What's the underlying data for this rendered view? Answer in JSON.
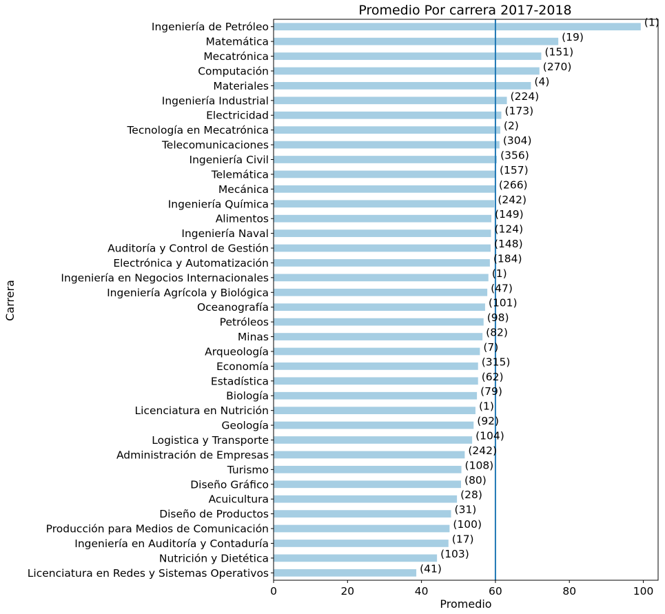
{
  "chart_data": {
    "type": "bar",
    "orientation": "horizontal",
    "title": "Promedio Por carrera 2017-2018",
    "xlabel": "Promedio",
    "ylabel": "Carrera",
    "xlim": [
      0,
      104
    ],
    "xticks": [
      0,
      20,
      40,
      60,
      80,
      100
    ],
    "grid": false,
    "reference_line": {
      "x": 60,
      "color": "#1f77b4"
    },
    "bar_color": "#a6cee3",
    "categories": [
      "Ingeniería de Petróleo",
      "Matemática",
      "Mecatrónica",
      "Computación",
      "Materiales",
      "Ingeniería Industrial",
      "Electricidad",
      "Tecnología en Mecatrónica",
      "Telecomunicaciones",
      "Ingeniería Civil",
      "Telemática",
      "Mecánica",
      "Ingeniería Química",
      "Alimentos",
      "Ingeniería Naval",
      "Auditoría y Control de Gestión",
      "Electrónica y Automatización",
      "Ingeniería en Negocios Internacionales ",
      "Ingeniería Agrícola y Biológica",
      "Oceanografía",
      "Petróleos",
      "Minas",
      "Arqueología",
      "Economía",
      "Estadística",
      "Biología",
      "Licenciatura en Nutrición",
      "Geología",
      "Logistica y Transporte",
      "Administración de Empresas",
      "Turismo",
      "Diseño Gráfico",
      "Acuicultura",
      "Diseño de Productos",
      "Producción para Medios de Comunicación",
      "Ingeniería en Auditoría y Contaduría",
      "Nutrición y Dietética",
      "Licenciatura en Redes y Sistemas Operativos"
    ],
    "values": [
      99.3,
      77.0,
      72.4,
      71.9,
      69.6,
      63.1,
      61.6,
      61.3,
      61.1,
      60.4,
      60.2,
      60.0,
      59.7,
      58.9,
      58.8,
      58.7,
      58.5,
      58.1,
      57.8,
      57.2,
      56.8,
      56.5,
      55.8,
      55.3,
      55.3,
      55.0,
      54.6,
      54.1,
      53.7,
      51.7,
      50.8,
      50.7,
      49.6,
      48.0,
      47.6,
      47.3,
      44.2,
      38.6
    ],
    "counts": [
      "(1)",
      "(19)",
      "(151)",
      "(270)",
      "(4)",
      "(224)",
      "(173)",
      "(2)",
      "(304)",
      "(356)",
      "(157)",
      "(266)",
      "(242)",
      "(149)",
      "(124)",
      "(148)",
      "(184)",
      "(1)",
      "(47)",
      "(101)",
      "(98)",
      "(82)",
      "(7)",
      "(315)",
      "(62)",
      "(79)",
      "(1)",
      "(92)",
      "(104)",
      "(242)",
      "(108)",
      "(80)",
      "(28)",
      "(31)",
      "(100)",
      "(17)",
      "(103)",
      "(41)"
    ]
  }
}
